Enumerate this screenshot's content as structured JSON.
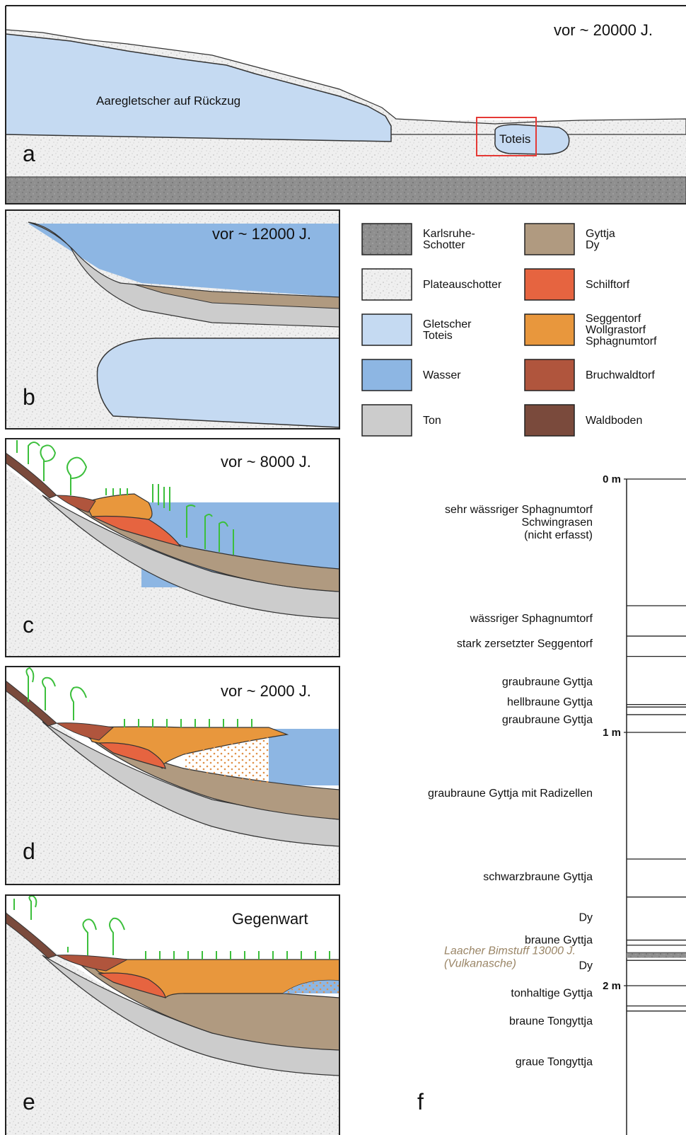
{
  "colors": {
    "karlsruhe_schotter": "#8f8f8f",
    "plateauschotter": "#eeeeee",
    "gletscher": "#c5daf2",
    "wasser": "#8db6e3",
    "ton": "#cccccc",
    "gyttja": "#b09a80",
    "schilftorf": "#e66440",
    "seggentorf": "#e8973d",
    "bruchwaldtorf": "#b0553d",
    "waldboden": "#7a4a3c",
    "vegetation": "#3cbf3c",
    "highlight_box": "#e53935"
  },
  "panels": {
    "a": {
      "letter": "a",
      "era": "vor ~ 20000 J.",
      "glacier_label": "Aaregletscher auf Rückzug",
      "toteis_label": "Toteis"
    },
    "b": {
      "letter": "b",
      "era": "vor ~ 12000 J."
    },
    "c": {
      "letter": "c",
      "era": "vor ~ 8000 J."
    },
    "d": {
      "letter": "d",
      "era": "vor ~ 2000 J."
    },
    "e": {
      "letter": "e",
      "era": "Gegenwart"
    },
    "f": {
      "letter": "f"
    }
  },
  "legend": [
    {
      "label": [
        "Karlsruhe-",
        "Schotter"
      ],
      "color_key": "karlsruhe_schotter"
    },
    {
      "label": [
        "Plateauschotter"
      ],
      "color_key": "plateauschotter"
    },
    {
      "label": [
        "Gletscher",
        "Toteis"
      ],
      "color_key": "gletscher"
    },
    {
      "label": [
        "Wasser"
      ],
      "color_key": "wasser"
    },
    {
      "label": [
        "Ton"
      ],
      "color_key": "ton"
    },
    {
      "label": [
        "Gyttja",
        "Dy"
      ],
      "color_key": "gyttja"
    },
    {
      "label": [
        "Schilftorf"
      ],
      "color_key": "schilftorf"
    },
    {
      "label": [
        "Seggentorf",
        "Wollgrastorf",
        "Sphagnumtorf"
      ],
      "color_key": "seggentorf"
    },
    {
      "label": [
        "Bruchwaldtorf"
      ],
      "color_key": "bruchwaldtorf"
    },
    {
      "label": [
        "Waldboden"
      ],
      "color_key": "waldboden"
    }
  ],
  "strat_column": {
    "depth_labels": [
      "0 m",
      "1 m",
      "2 m"
    ],
    "depth_ticks_m": [
      0,
      1,
      2
    ],
    "layer_boundaries_m": [
      0.5,
      0.62,
      0.7,
      0.89,
      0.9,
      0.93,
      1.5,
      1.65,
      1.82,
      1.84,
      1.87,
      1.9,
      2.08,
      2.1
    ],
    "ash_band_m": [
      1.87,
      1.89
    ],
    "descriptions": [
      {
        "lines": [
          "sehr wässriger Sphagnumtorf",
          "Schwingrasen",
          "(nicht erfasst)"
        ],
        "depth_m": 0.17
      },
      {
        "lines": [
          "wässriger Sphagnumtorf"
        ],
        "depth_m": 0.55
      },
      {
        "lines": [
          "stark zersetzter Seggentorf"
        ],
        "depth_m": 0.65
      },
      {
        "lines": [
          "graubraune Gyttja"
        ],
        "depth_m": 0.8
      },
      {
        "lines": [
          "hellbraune Gyttja"
        ],
        "depth_m": 0.88
      },
      {
        "lines": [
          "graubraune Gyttja"
        ],
        "depth_m": 0.95
      },
      {
        "lines": [
          "graubraune Gyttja mit Radizellen"
        ],
        "depth_m": 1.24
      },
      {
        "lines": [
          "schwarzbraune Gyttja"
        ],
        "depth_m": 1.57
      },
      {
        "lines": [
          "Dy"
        ],
        "depth_m": 1.73
      },
      {
        "lines": [
          "braune Gyttja"
        ],
        "depth_m": 1.82
      },
      {
        "lines": [
          "Dy"
        ],
        "depth_m": 1.92
      },
      {
        "lines": [
          "tonhaltige Gyttja"
        ],
        "depth_m": 2.03
      },
      {
        "lines": [
          "braune Tongyttja"
        ],
        "depth_m": 2.14
      },
      {
        "lines": [
          "graue Tongyttja"
        ],
        "depth_m": 2.3
      }
    ],
    "ash_label": [
      "Laacher Bimstuff 13000 J.",
      "(Vulkanasche)"
    ]
  }
}
